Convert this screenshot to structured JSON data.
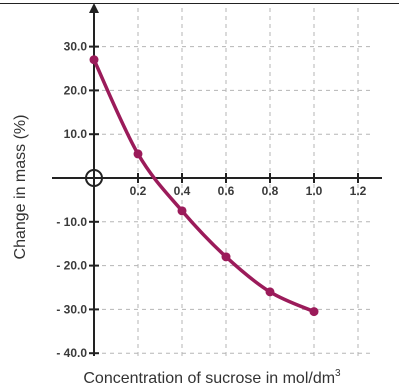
{
  "chart_data": {
    "type": "line",
    "title": "",
    "xlabel": "Concentration of sucrose in mol/dm",
    "xlabel_superscript": "3",
    "ylabel": "Change in mass (%)",
    "xlim": [
      0,
      1.35
    ],
    "ylim": [
      -40,
      38
    ],
    "x_ticks": [
      0.2,
      0.4,
      0.6,
      0.8,
      1.0,
      1.2
    ],
    "x_tick_labels": [
      "0.2",
      "0.4",
      "0.6",
      "0.8",
      "1.0",
      "1.2"
    ],
    "y_ticks": [
      30,
      20,
      10,
      -10,
      -20,
      -30,
      -40
    ],
    "y_tick_labels": [
      "30.0",
      "20.0",
      "10.0",
      "- 10.0",
      "- 20.0",
      "- 30.0",
      "- 40.0"
    ],
    "grid": true,
    "origin_marker": true,
    "series": [
      {
        "color": "#9b1b5a",
        "x": [
          0,
          0.2,
          0.4,
          0.6,
          0.8,
          1.0
        ],
        "y": [
          27,
          5.5,
          -7.5,
          -18,
          -26,
          -30.5
        ]
      }
    ]
  }
}
